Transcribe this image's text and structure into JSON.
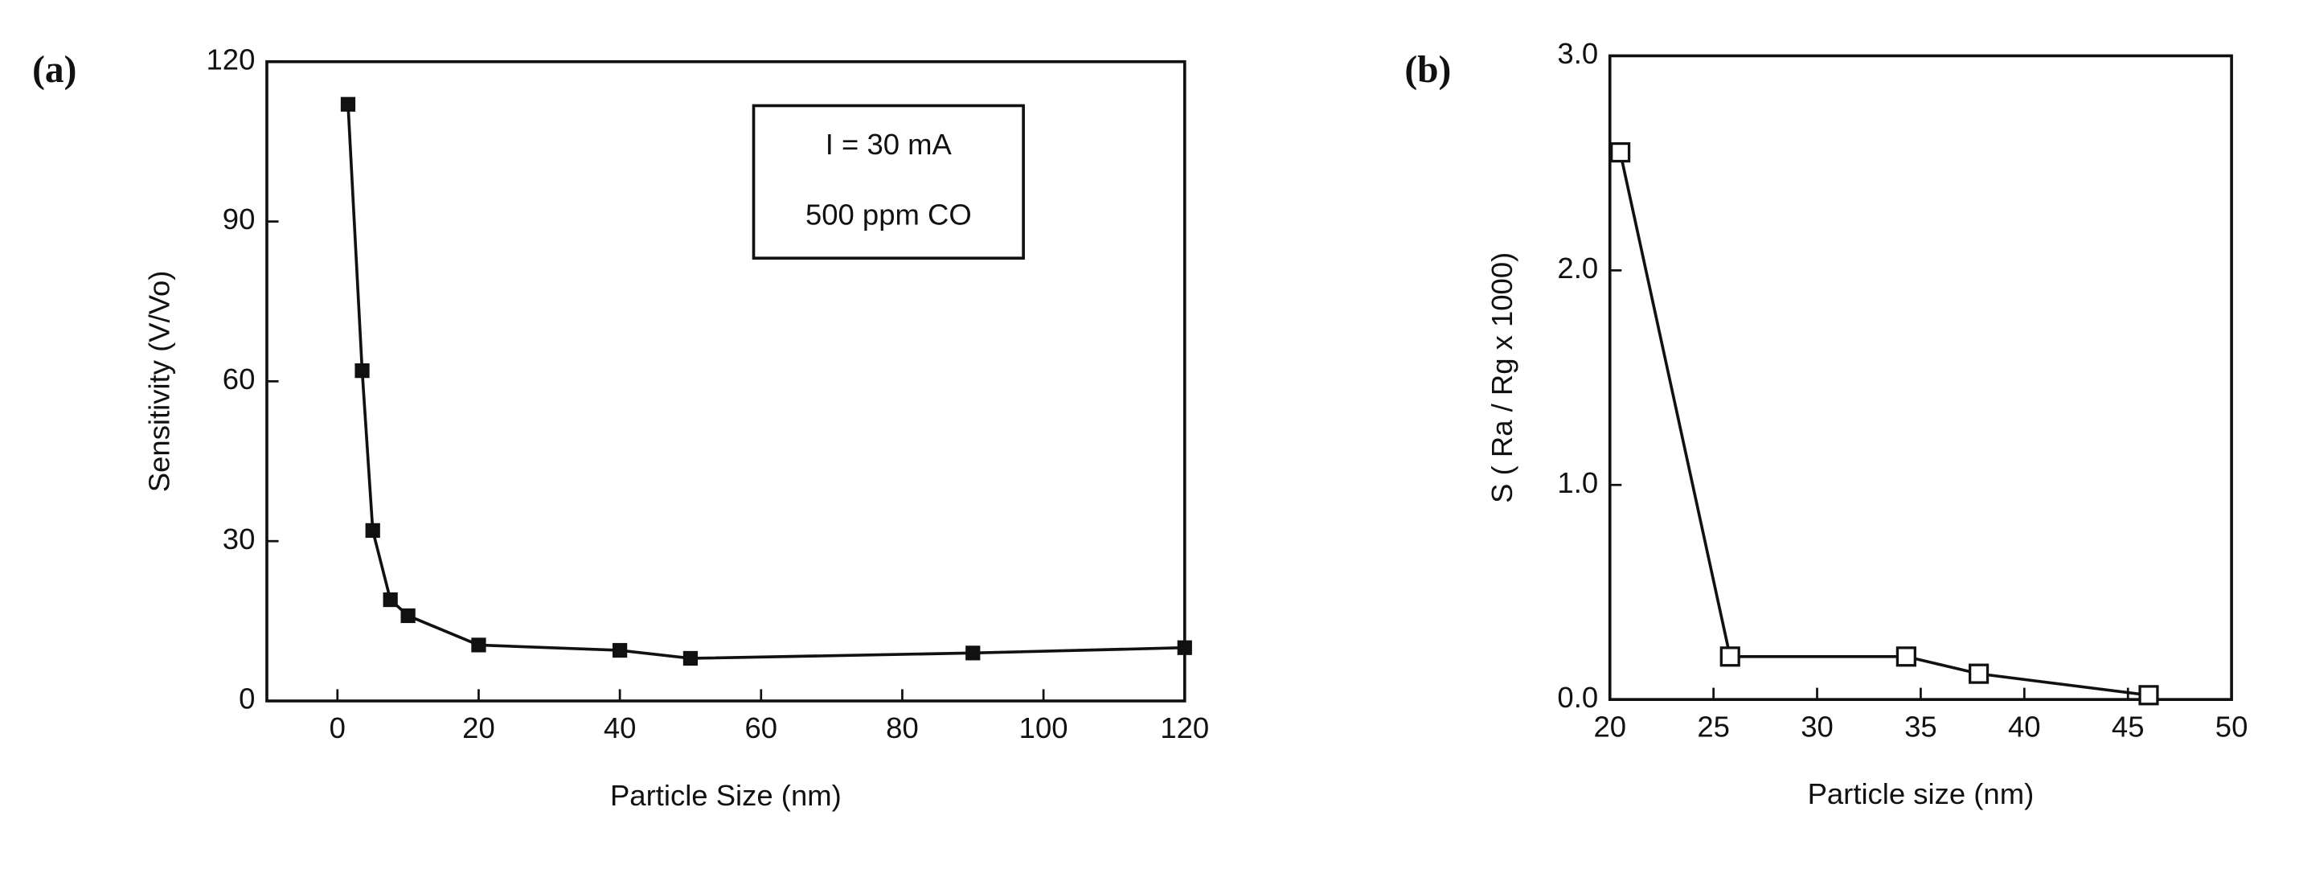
{
  "chart_data": [
    {
      "type": "line",
      "panel_label": "(a)",
      "x_label": "Particle Size (nm)",
      "y_label": "Sensitivity (V/Vo)",
      "annotation": [
        "I = 30 mA",
        "500 ppm CO"
      ],
      "x": [
        1.5,
        3.5,
        5,
        7.5,
        10,
        20,
        40,
        50,
        90,
        120
      ],
      "series": [
        {
          "color": "#111111",
          "marker": "filled-square",
          "values": [
            112,
            62,
            32,
            19,
            16,
            10.5,
            9.5,
            8,
            9,
            10
          ]
        }
      ],
      "xlim": [
        -10,
        120
      ],
      "xticks": [
        0,
        20,
        40,
        60,
        80,
        100,
        120
      ],
      "ylim": [
        0,
        120
      ],
      "yticks": [
        0,
        30,
        60,
        90,
        120
      ]
    },
    {
      "type": "line",
      "panel_label": "(b)",
      "x_label": "Particle size (nm)",
      "y_label": "S ( Ra / Rg x 1000)",
      "x": [
        20.5,
        25.8,
        34.3,
        37.8,
        46
      ],
      "series": [
        {
          "color": "#111111",
          "marker": "open-square",
          "values": [
            2.55,
            0.2,
            0.2,
            0.12,
            0.02
          ]
        }
      ],
      "xlim": [
        20,
        50
      ],
      "xticks": [
        20,
        25,
        30,
        35,
        40,
        45,
        50
      ],
      "ylim": [
        0,
        3
      ],
      "yticks": [
        {
          "value": 0,
          "label": "0.0"
        },
        {
          "value": 1,
          "label": "1.0"
        },
        {
          "value": 2,
          "label": "2.0"
        },
        {
          "value": 3,
          "label": "3.0"
        }
      ]
    }
  ]
}
